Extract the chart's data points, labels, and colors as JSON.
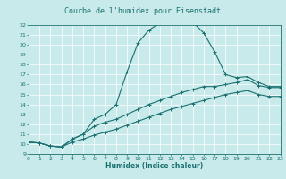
{
  "title": "Courbe de l'humidex pour Eisenstadt",
  "xlabel": "Humidex (Indice chaleur)",
  "bg_color": "#c8eaea",
  "grid_color": "#ffffff",
  "line_color": "#1a7070",
  "xmin": 0,
  "xmax": 23,
  "ymin": 9,
  "ymax": 22,
  "curve1_x": [
    0,
    1,
    2,
    3,
    4,
    5,
    6,
    7,
    8,
    9,
    10,
    11,
    12,
    13,
    14,
    15,
    16,
    17,
    18,
    19,
    20,
    21,
    22,
    23
  ],
  "curve1_y": [
    10.2,
    10.1,
    9.8,
    9.7,
    10.5,
    11.0,
    12.5,
    13.0,
    14.0,
    17.3,
    20.2,
    21.5,
    22.2,
    22.4,
    22.3,
    22.3,
    21.2,
    19.3,
    17.0,
    16.7,
    16.8,
    16.2,
    15.8,
    15.8
  ],
  "curve2_x": [
    0,
    1,
    2,
    3,
    4,
    5,
    6,
    7,
    8,
    9,
    10,
    11,
    12,
    13,
    14,
    15,
    16,
    17,
    18,
    19,
    20,
    21,
    22,
    23
  ],
  "curve2_y": [
    10.2,
    10.1,
    9.8,
    9.7,
    10.5,
    11.0,
    11.8,
    12.2,
    12.5,
    13.0,
    13.5,
    14.0,
    14.4,
    14.8,
    15.2,
    15.5,
    15.8,
    15.8,
    16.0,
    16.2,
    16.5,
    15.9,
    15.7,
    15.7
  ],
  "curve3_x": [
    0,
    1,
    2,
    3,
    4,
    5,
    6,
    7,
    8,
    9,
    10,
    11,
    12,
    13,
    14,
    15,
    16,
    17,
    18,
    19,
    20,
    21,
    22,
    23
  ],
  "curve3_y": [
    10.2,
    10.1,
    9.8,
    9.7,
    10.2,
    10.5,
    10.9,
    11.2,
    11.5,
    11.9,
    12.3,
    12.7,
    13.1,
    13.5,
    13.8,
    14.1,
    14.4,
    14.7,
    15.0,
    15.2,
    15.4,
    15.0,
    14.8,
    14.8
  ],
  "marker": "+",
  "markersize": 3,
  "linewidth": 0.8,
  "title_fontsize": 6,
  "axis_fontsize": 5.5,
  "tick_fontsize": 4.5
}
